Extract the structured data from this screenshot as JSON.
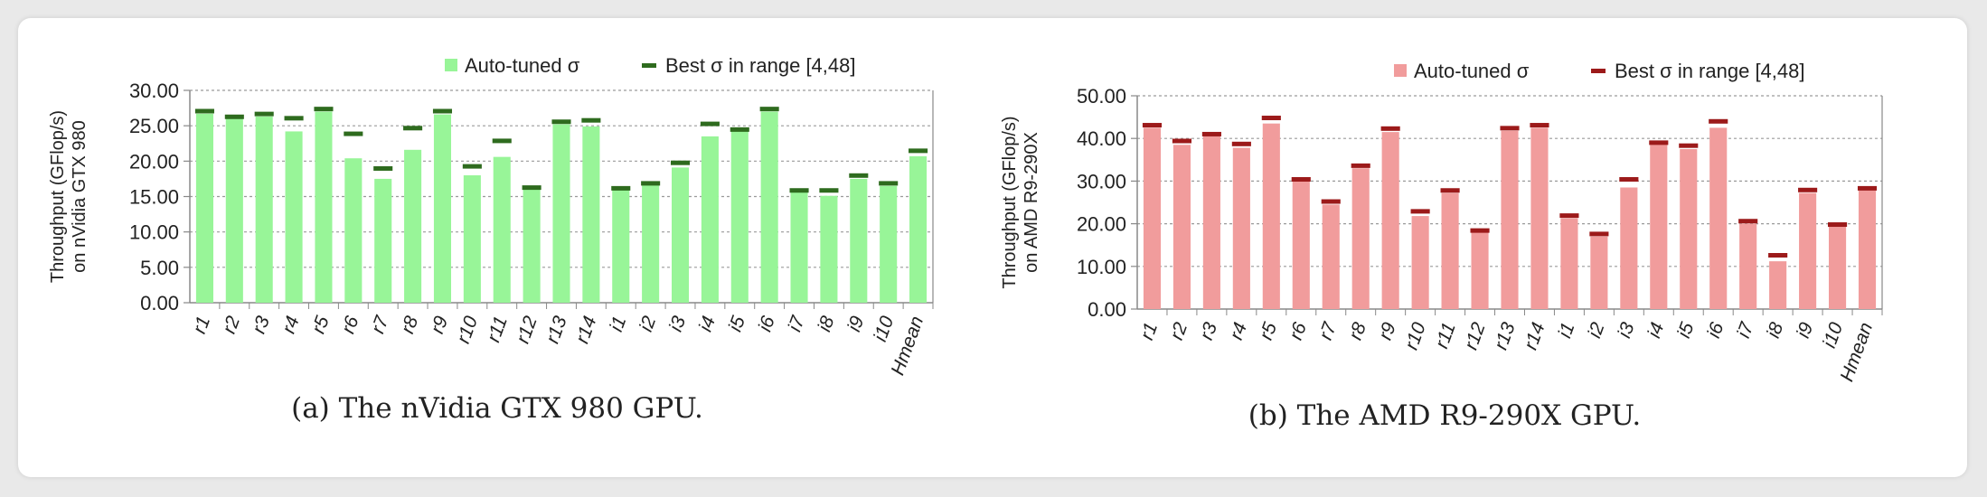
{
  "legend": {
    "auto_label": "Auto-tuned σ",
    "best_label": "Best σ in range [4,48]"
  },
  "categories": [
    "r1",
    "r2",
    "r3",
    "r4",
    "r5",
    "r6",
    "r7",
    "r8",
    "r9",
    "r10",
    "r11",
    "r12",
    "r13",
    "r14",
    "i1",
    "i2",
    "i3",
    "i4",
    "i5",
    "i6",
    "i7",
    "i8",
    "i9",
    "i10",
    "Hmean"
  ],
  "chart_data": [
    {
      "type": "bar",
      "ylabel_line1": "Throughput (GFlop/s)",
      "ylabel_line2": "on nVidia GTX 980",
      "caption": "(a) The nVidia GTX 980 GPU.",
      "ylim": [
        0,
        30
      ],
      "yticks": [
        "0.00",
        "5.00",
        "10.00",
        "15.00",
        "20.00",
        "25.00",
        "30.00"
      ],
      "ytick_values": [
        0,
        5,
        10,
        15,
        20,
        25,
        30
      ],
      "grid": true,
      "legend_position": "top",
      "colors": {
        "bar": "#98f598",
        "best": "#2e6b1e"
      },
      "series": [
        {
          "name": "Auto-tuned σ",
          "values": [
            26.7,
            26.0,
            26.3,
            24.2,
            27.0,
            20.4,
            17.5,
            21.6,
            26.6,
            18.0,
            20.6,
            16.0,
            25.2,
            24.9,
            16.0,
            16.7,
            19.1,
            23.5,
            24.3,
            27.0,
            15.8,
            15.1,
            17.5,
            16.5,
            20.7
          ]
        },
        {
          "name": "Best σ in range [4,48]",
          "values": [
            27.0,
            26.2,
            26.6,
            26.0,
            27.3,
            23.8,
            18.9,
            24.6,
            27.0,
            19.2,
            22.8,
            16.2,
            25.5,
            25.7,
            16.1,
            16.8,
            19.7,
            25.2,
            24.4,
            27.3,
            15.8,
            15.8,
            17.9,
            16.8,
            21.4
          ]
        }
      ]
    },
    {
      "type": "bar",
      "ylabel_line1": "Throughput (GFlop/s)",
      "ylabel_line2": "on AMD R9-290X",
      "caption": "(b) The AMD R9-290X GPU.",
      "ylim": [
        0,
        50
      ],
      "yticks": [
        "0.00",
        "10.00",
        "20.00",
        "30.00",
        "40.00",
        "50.00"
      ],
      "ytick_values": [
        0,
        10,
        20,
        30,
        40,
        50
      ],
      "grid": true,
      "legend_position": "top",
      "colors": {
        "bar": "#f19c9c",
        "best": "#9c1a1a"
      },
      "series": [
        {
          "name": "Auto-tuned σ",
          "values": [
            42.5,
            38.5,
            40.5,
            37.8,
            43.5,
            30.0,
            24.5,
            33.0,
            41.5,
            21.8,
            27.2,
            18.0,
            41.8,
            42.5,
            21.3,
            17.0,
            28.5,
            38.5,
            37.5,
            42.5,
            20.0,
            11.2,
            27.2,
            19.5,
            27.8
          ]
        },
        {
          "name": "Best σ in range [4,48]",
          "values": [
            43.0,
            39.3,
            40.9,
            38.6,
            44.7,
            30.3,
            25.1,
            33.5,
            42.2,
            22.8,
            27.7,
            18.3,
            42.3,
            43.0,
            21.8,
            17.5,
            30.3,
            38.9,
            38.2,
            43.9,
            20.5,
            12.5,
            27.8,
            19.7,
            28.2
          ]
        }
      ]
    }
  ]
}
